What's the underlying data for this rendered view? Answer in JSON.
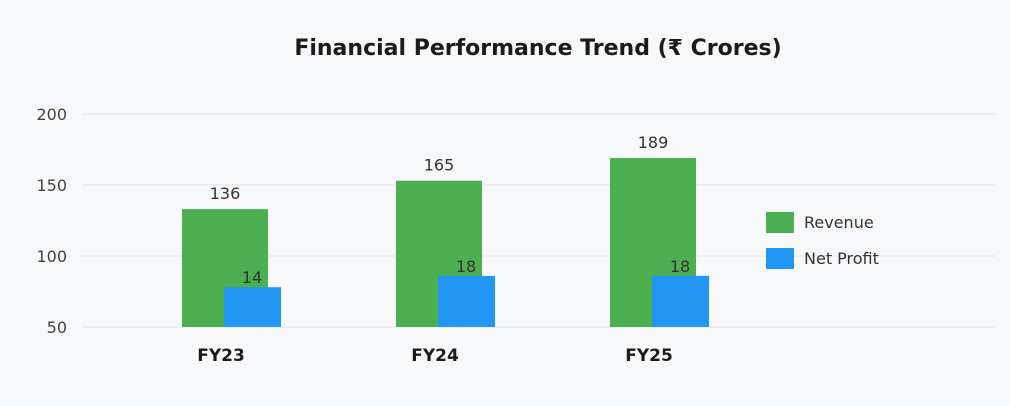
{
  "chart_data": {
    "type": "bar",
    "title": "Financial Performance Trend (₹ Crores)",
    "xlabel": "",
    "ylabel": "",
    "categories": [
      "FY23",
      "FY24",
      "FY25"
    ],
    "ylim": [
      50,
      200
    ],
    "yticks": [
      50,
      100,
      150,
      200
    ],
    "grid": true,
    "legend_position": "right",
    "series": [
      {
        "name": "Revenue",
        "color": "#4caf50",
        "values": [
          136,
          165,
          189
        ],
        "plotted_values": [
          133,
          153,
          169
        ]
      },
      {
        "name": "Net Profit",
        "color": "#2196f3",
        "values": [
          14,
          18,
          18
        ],
        "plotted_values": [
          78,
          86,
          86
        ]
      }
    ]
  }
}
